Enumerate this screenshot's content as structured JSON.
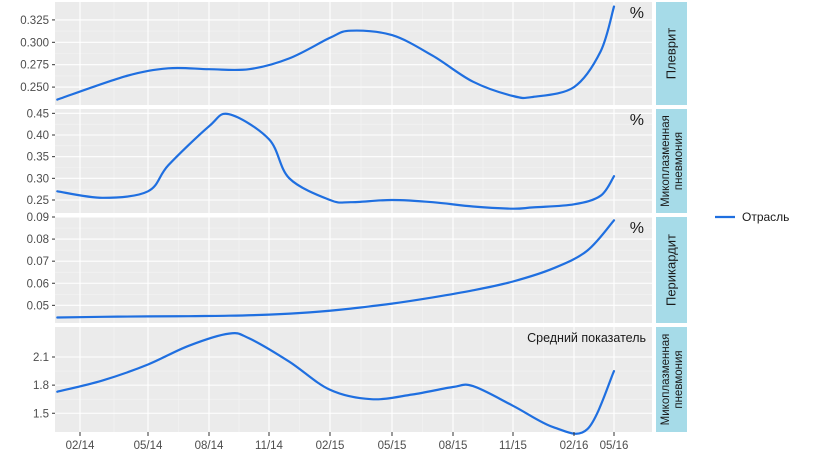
{
  "colors": {
    "series": "#1f6fe0",
    "strip": "#a6dbe8",
    "panel": "#ebebeb"
  },
  "chart_data": {
    "type": "line",
    "x_ticks": [
      "02/14",
      "05/14",
      "08/14",
      "11/14",
      "02/15",
      "05/15",
      "08/15",
      "11/15",
      "02/16",
      "05/16"
    ],
    "legend": {
      "position": "right",
      "entries": [
        "Отрасль"
      ]
    },
    "facets": [
      {
        "strip": [
          "Плеврит"
        ],
        "annotation": "%",
        "ylim": [
          0.23,
          0.345
        ],
        "y_ticks": [
          "0.250",
          "0.275",
          "0.300",
          "0.325"
        ],
        "y_tick_values": [
          0.25,
          0.275,
          0.3,
          0.325
        ],
        "series": [
          {
            "name": "Отрасль",
            "x": [
              "01/14",
              "04/14",
              "06/14",
              "08/14",
              "10/14",
              "12/14",
              "02/15",
              "03/15",
              "05/15",
              "07/15",
              "09/15",
              "11/15",
              "12/15",
              "02/16",
              "04/16",
              "05/16"
            ],
            "values": [
              0.236,
              0.262,
              0.271,
              0.27,
              0.27,
              0.282,
              0.305,
              0.313,
              0.308,
              0.285,
              0.256,
              0.24,
              0.239,
              0.25,
              0.29,
              0.34
            ]
          }
        ]
      },
      {
        "strip": [
          "Микоплазменная",
          "пневмония"
        ],
        "annotation": "%",
        "ylim": [
          0.22,
          0.46
        ],
        "y_ticks": [
          "0.25",
          "0.30",
          "0.35",
          "0.40",
          "0.45"
        ],
        "y_tick_values": [
          0.25,
          0.3,
          0.35,
          0.4,
          0.45
        ],
        "series": [
          {
            "name": "Отрасль",
            "x": [
              "01/14",
              "03/14",
              "05/14",
              "06/14",
              "08/14",
              "09/14",
              "11/14",
              "12/14",
              "02/15",
              "03/15",
              "05/15",
              "07/15",
              "09/15",
              "11/15",
              "12/15",
              "02/16",
              "04/16",
              "05/16"
            ],
            "values": [
              0.27,
              0.255,
              0.27,
              0.33,
              0.42,
              0.448,
              0.39,
              0.3,
              0.25,
              0.245,
              0.25,
              0.245,
              0.235,
              0.23,
              0.233,
              0.24,
              0.26,
              0.305
            ]
          }
        ]
      },
      {
        "strip": [
          "Перикардит"
        ],
        "annotation": "%",
        "ylim": [
          0.042,
          0.09
        ],
        "y_ticks": [
          "0.05",
          "0.06",
          "0.07",
          "0.08",
          "0.09"
        ],
        "y_tick_values": [
          0.05,
          0.06,
          0.07,
          0.08,
          0.09
        ],
        "series": [
          {
            "name": "Отрасль",
            "x": [
              "01/14",
              "03/14",
              "05/14",
              "07/14",
              "09/14",
              "11/14",
              "01/15",
              "03/15",
              "05/15",
              "07/15",
              "09/15",
              "11/15",
              "01/16",
              "03/16",
              "05/16"
            ],
            "values": [
              0.0445,
              0.0448,
              0.045,
              0.0451,
              0.0453,
              0.0458,
              0.0468,
              0.0485,
              0.0508,
              0.0536,
              0.0568,
              0.0608,
              0.0668,
              0.0748,
              0.0885
            ]
          }
        ]
      },
      {
        "strip": [
          "Микоплазменная",
          "пневмония"
        ],
        "annotation": "Средний показатель",
        "ylim": [
          1.3,
          2.42
        ],
        "y_ticks": [
          "1.5",
          "1.8",
          "2.1"
        ],
        "y_tick_values": [
          1.5,
          1.8,
          2.1
        ],
        "series": [
          {
            "name": "Отрасль",
            "x": [
              "01/14",
              "03/14",
              "05/14",
              "07/14",
              "09/14",
              "10/14",
              "12/14",
              "02/15",
              "04/15",
              "06/15",
              "08/15",
              "09/15",
              "11/15",
              "01/16",
              "03/16",
              "05/16"
            ],
            "values": [
              1.73,
              1.85,
              2.02,
              2.22,
              2.35,
              2.3,
              2.05,
              1.75,
              1.65,
              1.7,
              1.78,
              1.79,
              1.58,
              1.35,
              1.33,
              1.95
            ]
          }
        ]
      }
    ]
  }
}
